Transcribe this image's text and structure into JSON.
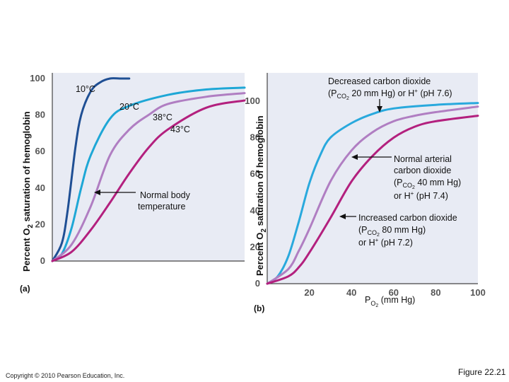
{
  "chart_data": [
    {
      "panel": "(a)",
      "type": "line",
      "xlabel": "",
      "ylabel": "Percent O2 saturation of hemoglobin",
      "ylim": [
        0,
        100
      ],
      "yticks": [
        "0",
        "20",
        "40",
        "60",
        "80",
        "100"
      ],
      "series": [
        {
          "name": "10°C",
          "color": "#1f4f94",
          "x": [
            0,
            5,
            8,
            12,
            15,
            20,
            25,
            30,
            35,
            40
          ],
          "y": [
            0,
            10,
            28,
            62,
            80,
            93,
            98,
            100,
            100,
            100
          ]
        },
        {
          "name": "20°C",
          "color": "#1ea7d6",
          "x": [
            0,
            5,
            10,
            15,
            20,
            30,
            40,
            60,
            80,
            100
          ],
          "y": [
            0,
            4,
            18,
            40,
            58,
            78,
            85,
            91,
            94,
            95
          ]
        },
        {
          "name": "38°C",
          "color": "#b07ec2",
          "x": [
            0,
            10,
            20,
            30,
            40,
            50,
            60,
            80,
            100
          ],
          "y": [
            0,
            9,
            30,
            58,
            72,
            80,
            86,
            90,
            92
          ]
        },
        {
          "name": "43°C",
          "color": "#b3207e",
          "x": [
            0,
            10,
            20,
            30,
            40,
            50,
            60,
            80,
            100
          ],
          "y": [
            0,
            5,
            17,
            32,
            48,
            62,
            72,
            84,
            88
          ]
        }
      ],
      "annotations": {
        "t10": "10°C",
        "t20": "20°C",
        "t38": "38°C",
        "t43": "43°C",
        "normal": [
          "Normal body",
          "temperature"
        ]
      }
    },
    {
      "panel": "(b)",
      "type": "line",
      "xlabel": "PO2 (mm Hg)",
      "ylabel": "Percent O2 saturation of hemoglobin",
      "xlim": [
        0,
        100
      ],
      "ylim": [
        0,
        100
      ],
      "xticks": [
        "20",
        "40",
        "60",
        "80",
        "100"
      ],
      "yticks": [
        "0",
        "20",
        "40",
        "60",
        "80",
        "100"
      ],
      "series": [
        {
          "name": "Decreased carbon dioxide (PCO2 20 mm Hg) or H+ (pH 7.6)",
          "color": "#29a9dd",
          "x": [
            0,
            5,
            10,
            15,
            20,
            25,
            30,
            40,
            50,
            60,
            80,
            100
          ],
          "y": [
            0,
            4,
            15,
            34,
            55,
            70,
            80,
            88,
            93,
            96,
            98,
            99
          ]
        },
        {
          "name": "Normal arterial carbon dioxide (PCO2 40 mm Hg) or H+ (pH 7.4)",
          "color": "#b07ec2",
          "x": [
            0,
            10,
            15,
            20,
            30,
            40,
            50,
            60,
            70,
            80,
            100
          ],
          "y": [
            0,
            8,
            18,
            30,
            56,
            73,
            83,
            89,
            92,
            94,
            97
          ]
        },
        {
          "name": "Increased carbon dioxide (PCO2 80 mm Hg) or H+ (pH 7.2)",
          "color": "#b3207e",
          "x": [
            0,
            10,
            15,
            20,
            30,
            40,
            50,
            60,
            70,
            80,
            100
          ],
          "y": [
            0,
            4,
            9,
            17,
            36,
            56,
            70,
            80,
            86,
            89,
            92
          ]
        }
      ],
      "annotations": {
        "decreased": [
          "Decreased carbon dioxide",
          "(PCO2 20 mm Hg) or H+ (pH 7.6)"
        ],
        "normal": [
          "Normal arterial",
          "carbon dioxide",
          "(PCO2 40 mm Hg)",
          "or H+ (pH 7.4)"
        ],
        "increased": [
          "Increased carbon dioxide",
          "(PCO2 80 mm Hg)",
          "or H+ (pH 7.2)"
        ]
      }
    }
  ],
  "copyright": "Copyright © 2010 Pearson Education, Inc.",
  "figure_label": "Figure 22.21"
}
